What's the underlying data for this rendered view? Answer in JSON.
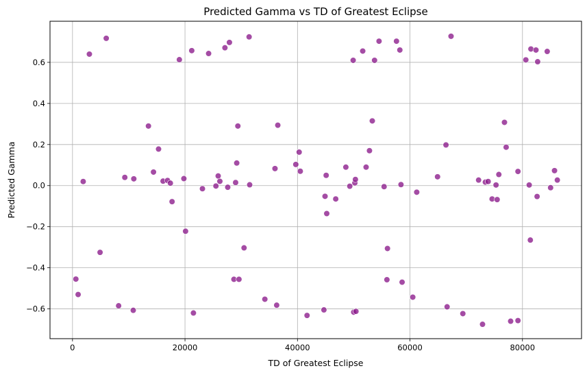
{
  "chart_data": {
    "type": "scatter",
    "title": "Predicted Gamma vs TD of Greatest Eclipse",
    "xlabel": "TD of Greatest Eclipse",
    "ylabel": "Predicted Gamma",
    "xlim": [
      -4000,
      90500
    ],
    "ylim": [
      -0.745,
      0.8
    ],
    "xticks": [
      0,
      20000,
      40000,
      60000,
      80000
    ],
    "xtick_labels": [
      "0",
      "20000",
      "40000",
      "60000",
      "80000"
    ],
    "yticks": [
      -0.6,
      -0.4,
      -0.2,
      0.0,
      0.2,
      0.4,
      0.6
    ],
    "ytick_labels": [
      "−0.6",
      "−0.4",
      "−0.2",
      "0.0",
      "0.2",
      "0.4",
      "0.6"
    ],
    "grid": true,
    "marker_color": "#8b1a8b",
    "points": [
      [
        600,
        -0.455
      ],
      [
        1000,
        -0.53
      ],
      [
        1900,
        0.02
      ],
      [
        3000,
        0.64
      ],
      [
        4900,
        -0.325
      ],
      [
        6000,
        0.717
      ],
      [
        8200,
        -0.585
      ],
      [
        9300,
        0.04
      ],
      [
        10800,
        -0.607
      ],
      [
        10900,
        0.033
      ],
      [
        13500,
        0.29
      ],
      [
        14400,
        0.066
      ],
      [
        15300,
        0.178
      ],
      [
        16100,
        0.022
      ],
      [
        16900,
        0.025
      ],
      [
        17400,
        0.012
      ],
      [
        17700,
        -0.078
      ],
      [
        19000,
        0.613
      ],
      [
        19800,
        0.034
      ],
      [
        20100,
        -0.222
      ],
      [
        21200,
        0.657
      ],
      [
        21500,
        -0.62
      ],
      [
        23100,
        -0.015
      ],
      [
        24200,
        0.643
      ],
      [
        25500,
        -0.002
      ],
      [
        25900,
        0.047
      ],
      [
        26200,
        0.021
      ],
      [
        27100,
        0.671
      ],
      [
        27600,
        -0.008
      ],
      [
        27900,
        0.697
      ],
      [
        28700,
        -0.456
      ],
      [
        29000,
        0.015
      ],
      [
        29200,
        0.11
      ],
      [
        29400,
        0.29
      ],
      [
        29600,
        -0.456
      ],
      [
        30500,
        -0.303
      ],
      [
        31400,
        0.724
      ],
      [
        31500,
        0.004
      ],
      [
        34200,
        -0.553
      ],
      [
        36000,
        0.083
      ],
      [
        36300,
        -0.582
      ],
      [
        36500,
        0.294
      ],
      [
        39700,
        0.103
      ],
      [
        40300,
        0.163
      ],
      [
        40500,
        0.07
      ],
      [
        41700,
        -0.632
      ],
      [
        44700,
        -0.605
      ],
      [
        44900,
        -0.052
      ],
      [
        45100,
        0.05
      ],
      [
        45200,
        -0.136
      ],
      [
        46800,
        -0.065
      ],
      [
        48600,
        0.09
      ],
      [
        49300,
        -0.003
      ],
      [
        49900,
        0.61
      ],
      [
        50000,
        -0.616
      ],
      [
        50200,
        0.013
      ],
      [
        50300,
        0.03
      ],
      [
        50400,
        -0.612
      ],
      [
        51600,
        0.655
      ],
      [
        52200,
        0.09
      ],
      [
        52800,
        0.17
      ],
      [
        53300,
        0.315
      ],
      [
        53700,
        0.61
      ],
      [
        54500,
        0.703
      ],
      [
        55400,
        -0.005
      ],
      [
        55900,
        -0.458
      ],
      [
        56000,
        -0.306
      ],
      [
        57600,
        0.703
      ],
      [
        58200,
        0.66
      ],
      [
        58400,
        0.005
      ],
      [
        58600,
        -0.47
      ],
      [
        60500,
        -0.543
      ],
      [
        61200,
        -0.032
      ],
      [
        64900,
        0.043
      ],
      [
        66400,
        0.198
      ],
      [
        66600,
        -0.59
      ],
      [
        67300,
        0.727
      ],
      [
        69400,
        -0.623
      ],
      [
        72200,
        0.027
      ],
      [
        72900,
        -0.675
      ],
      [
        73400,
        0.017
      ],
      [
        73900,
        0.02
      ],
      [
        74600,
        -0.065
      ],
      [
        75300,
        0.003
      ],
      [
        75500,
        -0.068
      ],
      [
        75800,
        0.054
      ],
      [
        76800,
        0.308
      ],
      [
        77100,
        0.187
      ],
      [
        77900,
        -0.66
      ],
      [
        79200,
        0.069
      ],
      [
        79200,
        -0.657
      ],
      [
        80600,
        0.612
      ],
      [
        81200,
        0.003
      ],
      [
        81400,
        -0.265
      ],
      [
        81500,
        0.665
      ],
      [
        82400,
        0.66
      ],
      [
        82600,
        -0.053
      ],
      [
        82700,
        0.603
      ],
      [
        84400,
        0.653
      ],
      [
        85000,
        -0.01
      ],
      [
        85700,
        0.073
      ],
      [
        86200,
        0.027
      ]
    ]
  }
}
